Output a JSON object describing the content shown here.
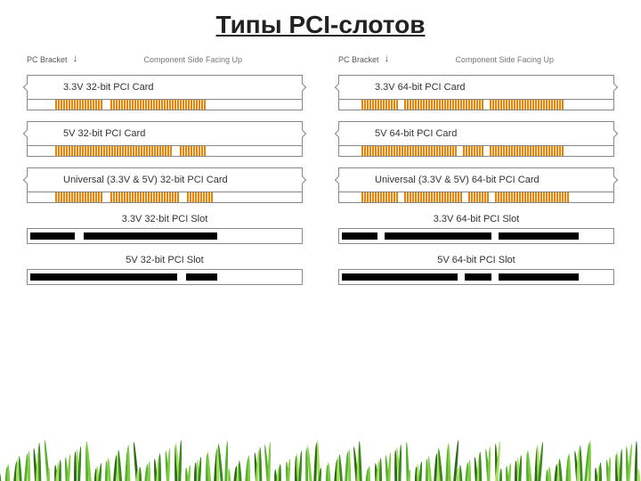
{
  "title": "Типы PCI-слотов",
  "bracket_label": "PC Bracket",
  "component_label": "Component Side Facing Up",
  "colors": {
    "pin": "#f08000",
    "border": "#888888",
    "slot_bar": "#000000",
    "text": "#333333",
    "title": "#222222",
    "bg": "#ffffff"
  },
  "left_col": {
    "cards": [
      {
        "label": "3.3V 32-bit PCI Card",
        "lead": 30,
        "segments": [
          {
            "pins": 18
          },
          {
            "gap": 8
          },
          {
            "pins": 36
          }
        ]
      },
      {
        "label": "5V 32-bit PCI Card",
        "lead": 30,
        "segments": [
          {
            "pins": 44
          },
          {
            "gap": 8
          },
          {
            "pins": 10
          }
        ]
      },
      {
        "label": "Universal (3.3V & 5V) 32-bit PCI Card",
        "lead": 30,
        "segments": [
          {
            "pins": 18
          },
          {
            "gap": 8
          },
          {
            "pins": 26
          },
          {
            "gap": 8
          },
          {
            "pins": 10
          }
        ]
      }
    ],
    "slots": [
      {
        "label": "3.3V 32-bit PCI Slot",
        "bars": [
          {
            "w": 50
          },
          {
            "gap": 10
          },
          {
            "w": 150
          }
        ]
      },
      {
        "label": "5V 32-bit PCI Slot",
        "bars": [
          {
            "w": 165
          },
          {
            "gap": 10
          },
          {
            "w": 35
          }
        ]
      }
    ]
  },
  "right_col": {
    "cards": [
      {
        "label": "3.3V 64-bit PCI Card",
        "lead": 24,
        "segments": [
          {
            "pins": 14
          },
          {
            "gap": 6
          },
          {
            "pins": 30
          },
          {
            "gap": 6
          },
          {
            "pins": 28
          }
        ]
      },
      {
        "label": "5V 64-bit PCI Card",
        "lead": 24,
        "segments": [
          {
            "pins": 36
          },
          {
            "gap": 6
          },
          {
            "pins": 8
          },
          {
            "gap": 6
          },
          {
            "pins": 28
          }
        ]
      },
      {
        "label": "Universal (3.3V & 5V) 64-bit PCI Card",
        "lead": 24,
        "segments": [
          {
            "pins": 14
          },
          {
            "gap": 6
          },
          {
            "pins": 22
          },
          {
            "gap": 6
          },
          {
            "pins": 8
          },
          {
            "gap": 6
          },
          {
            "pins": 28
          }
        ]
      }
    ],
    "slots": [
      {
        "label": "3.3V 64-bit PCI Slot",
        "bars": [
          {
            "w": 40
          },
          {
            "gap": 8
          },
          {
            "w": 120
          },
          {
            "gap": 8
          },
          {
            "w": 90
          }
        ]
      },
      {
        "label": "5V 64-bit PCI Slot",
        "bars": [
          {
            "w": 130
          },
          {
            "gap": 8
          },
          {
            "w": 30
          },
          {
            "gap": 8
          },
          {
            "w": 90
          }
        ]
      }
    ]
  },
  "grass": {
    "count": 160,
    "colors": [
      "#3a8a1f",
      "#56b02c",
      "#7fce3f",
      "#2e6b17",
      "#a4e05a"
    ],
    "min_h": 18,
    "max_h": 52
  }
}
